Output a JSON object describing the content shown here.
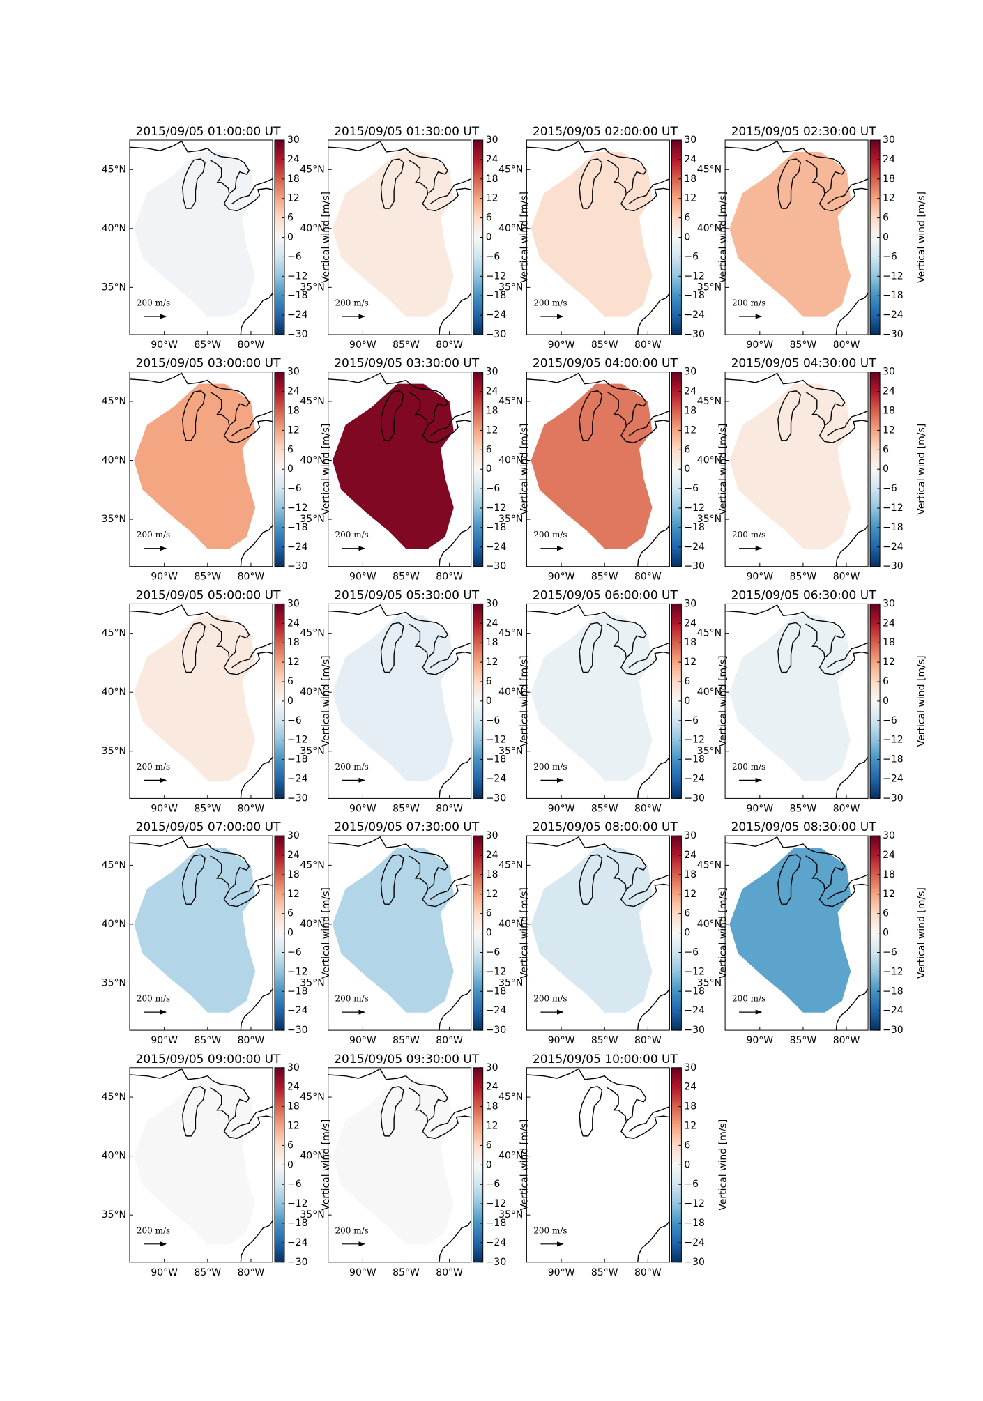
{
  "figure": {
    "colorbar": {
      "label": "Vertical wind [m/s]",
      "lim": [
        -30,
        30
      ],
      "ticks": [
        {
          "value": -30,
          "label": "−30"
        },
        {
          "value": -24,
          "label": "−24"
        },
        {
          "value": -18,
          "label": "−18"
        },
        {
          "value": -12,
          "label": "−12"
        },
        {
          "value": -6,
          "label": "−6"
        },
        0,
        6,
        12,
        18,
        24,
        30
      ]
    },
    "xlim": [
      -94,
      -77.5
    ],
    "ylim": [
      31,
      47.5
    ],
    "lat_ticks": [
      {
        "value": 35,
        "label": "35°N"
      },
      {
        "value": 40,
        "label": "40°N"
      },
      {
        "value": 45,
        "label": "45°N"
      }
    ],
    "lon_ticks": [
      {
        "value": -90,
        "label": "90°W"
      },
      {
        "value": -85,
        "label": "85°W"
      },
      {
        "value": -80,
        "label": "80°W"
      }
    ],
    "scale_label": "200 m/s"
  },
  "panels": [
    {
      "title": "2015/09/05 01:00:00 UT",
      "value": -1
    },
    {
      "title": "2015/09/05 01:30:00 UT",
      "value": 3
    },
    {
      "title": "2015/09/05 02:00:00 UT",
      "value": 5
    },
    {
      "title": "2015/09/05 02:30:00 UT",
      "value": 10
    },
    {
      "title": "2015/09/05 03:00:00 UT",
      "value": 12
    },
    {
      "title": "2015/09/05 03:30:00 UT",
      "value": 28
    },
    {
      "title": "2015/09/05 04:00:00 UT",
      "value": 16
    },
    {
      "title": "2015/09/05 04:30:00 UT",
      "value": 3
    },
    {
      "title": "2015/09/05 05:00:00 UT",
      "value": 3
    },
    {
      "title": "2015/09/05 05:30:00 UT",
      "value": -3
    },
    {
      "title": "2015/09/05 06:00:00 UT",
      "value": -2
    },
    {
      "title": "2015/09/05 06:30:00 UT",
      "value": -2
    },
    {
      "title": "2015/09/05 07:00:00 UT",
      "value": -9
    },
    {
      "title": "2015/09/05 07:30:00 UT",
      "value": -9
    },
    {
      "title": "2015/09/05 08:00:00 UT",
      "value": -5
    },
    {
      "title": "2015/09/05 08:30:00 UT",
      "value": -16
    },
    {
      "title": "2015/09/05 09:00:00 UT",
      "value": 0
    },
    {
      "title": "2015/09/05 09:30:00 UT",
      "value": 0
    },
    {
      "title": "2015/09/05 10:00:00 UT",
      "value": null
    }
  ]
}
